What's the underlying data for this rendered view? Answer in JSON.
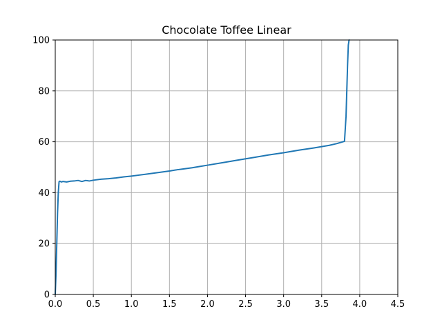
{
  "chart_data": {
    "type": "line",
    "title": "Chocolate Toffee Linear",
    "xlabel": "",
    "ylabel": "",
    "xlim": [
      0.0,
      4.5
    ],
    "ylim": [
      0,
      100
    ],
    "x_ticks": [
      0.0,
      0.5,
      1.0,
      1.5,
      2.0,
      2.5,
      3.0,
      3.5,
      4.0,
      4.5
    ],
    "x_tick_labels": [
      "0.0",
      "0.5",
      "1.0",
      "1.5",
      "2.0",
      "2.5",
      "3.0",
      "3.5",
      "4.0",
      "4.5"
    ],
    "y_ticks": [
      0,
      20,
      40,
      60,
      80,
      100
    ],
    "y_tick_labels": [
      "0",
      "20",
      "40",
      "60",
      "80",
      "100"
    ],
    "grid": true,
    "legend": "none",
    "series": [
      {
        "color": "#1f77b4",
        "x": [
          0.0,
          0.01,
          0.02,
          0.03,
          0.04,
          0.05,
          0.06,
          0.08,
          0.1,
          0.15,
          0.2,
          0.25,
          0.3,
          0.35,
          0.4,
          0.45,
          0.5,
          0.6,
          0.7,
          0.8,
          0.9,
          1.0,
          1.1,
          1.2,
          1.3,
          1.4,
          1.5,
          1.6,
          1.7,
          1.8,
          1.9,
          2.0,
          2.2,
          2.4,
          2.6,
          2.8,
          3.0,
          3.2,
          3.4,
          3.6,
          3.7,
          3.8,
          3.82,
          3.83,
          3.84,
          3.85,
          3.86
        ],
        "y": [
          0.0,
          8.0,
          20.0,
          32.0,
          40.0,
          44.3,
          44.5,
          44.2,
          44.4,
          44.2,
          44.5,
          44.6,
          44.8,
          44.4,
          44.8,
          44.6,
          44.9,
          45.3,
          45.5,
          45.8,
          46.2,
          46.5,
          46.9,
          47.3,
          47.7,
          48.1,
          48.5,
          49.0,
          49.4,
          49.8,
          50.3,
          50.8,
          51.8,
          52.8,
          53.8,
          54.8,
          55.7,
          56.7,
          57.6,
          58.6,
          59.3,
          60.2,
          70.0,
          80.0,
          90.0,
          98.0,
          100.0
        ]
      }
    ]
  }
}
